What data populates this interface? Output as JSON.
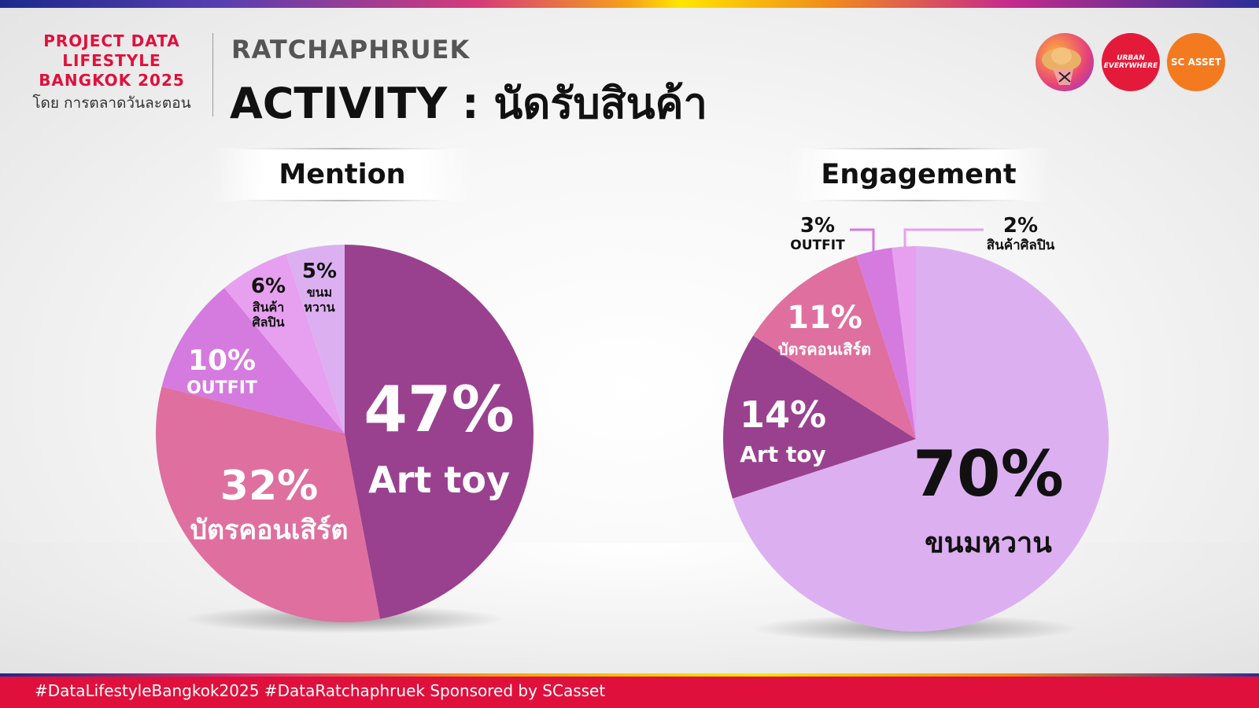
{
  "brand": {
    "line1": "PROJECT DATA",
    "line2": "LIFESTYLE",
    "line3": "BANGKOK 2025",
    "byline": "โดย การตลาดวันละตอน"
  },
  "header": {
    "kicker": "RATCHAPHRUEK",
    "title": "ACTIVITY : นัดรับสินค้า"
  },
  "logos": {
    "urban": "URBAN EVERYWHERE",
    "sc": "SC ASSET",
    "mascot_icon": "mascot-hat-icon"
  },
  "colors": {
    "art_toy": "#99418f",
    "concert": "#df6f9f",
    "outfit": "#d57ade",
    "artist_goods": "#e6a0ef",
    "dessert": "#dcb0f0",
    "brand_red": "#e0103c"
  },
  "chart_data": [
    {
      "type": "pie",
      "title": "Mention",
      "slices": [
        {
          "label": "Art toy",
          "value": 47,
          "display": "47%"
        },
        {
          "label": "บัตรคอนเสิร์ต",
          "value": 32,
          "display": "32%"
        },
        {
          "label": "OUTFIT",
          "value": 10,
          "display": "10%"
        },
        {
          "label": "สินค้าศิลปิน",
          "value": 6,
          "display": "6%"
        },
        {
          "label": "ขนมหวาน",
          "value": 5,
          "display": "5%"
        }
      ]
    },
    {
      "type": "pie",
      "title": "Engagement",
      "slices": [
        {
          "label": "ขนมหวาน",
          "value": 70,
          "display": "70%"
        },
        {
          "label": "Art toy",
          "value": 14,
          "display": "14%"
        },
        {
          "label": "บัตรคอนเสิร์ต",
          "value": 11,
          "display": "11%"
        },
        {
          "label": "OUTFIT",
          "value": 3,
          "display": "3%"
        },
        {
          "label": "สินค้าศิลปิน",
          "value": 2,
          "display": "2%"
        }
      ]
    }
  ],
  "footer": {
    "text": "#DataLifestyleBangkok2025 #DataRatchaphruek Sponsored by SCasset"
  }
}
